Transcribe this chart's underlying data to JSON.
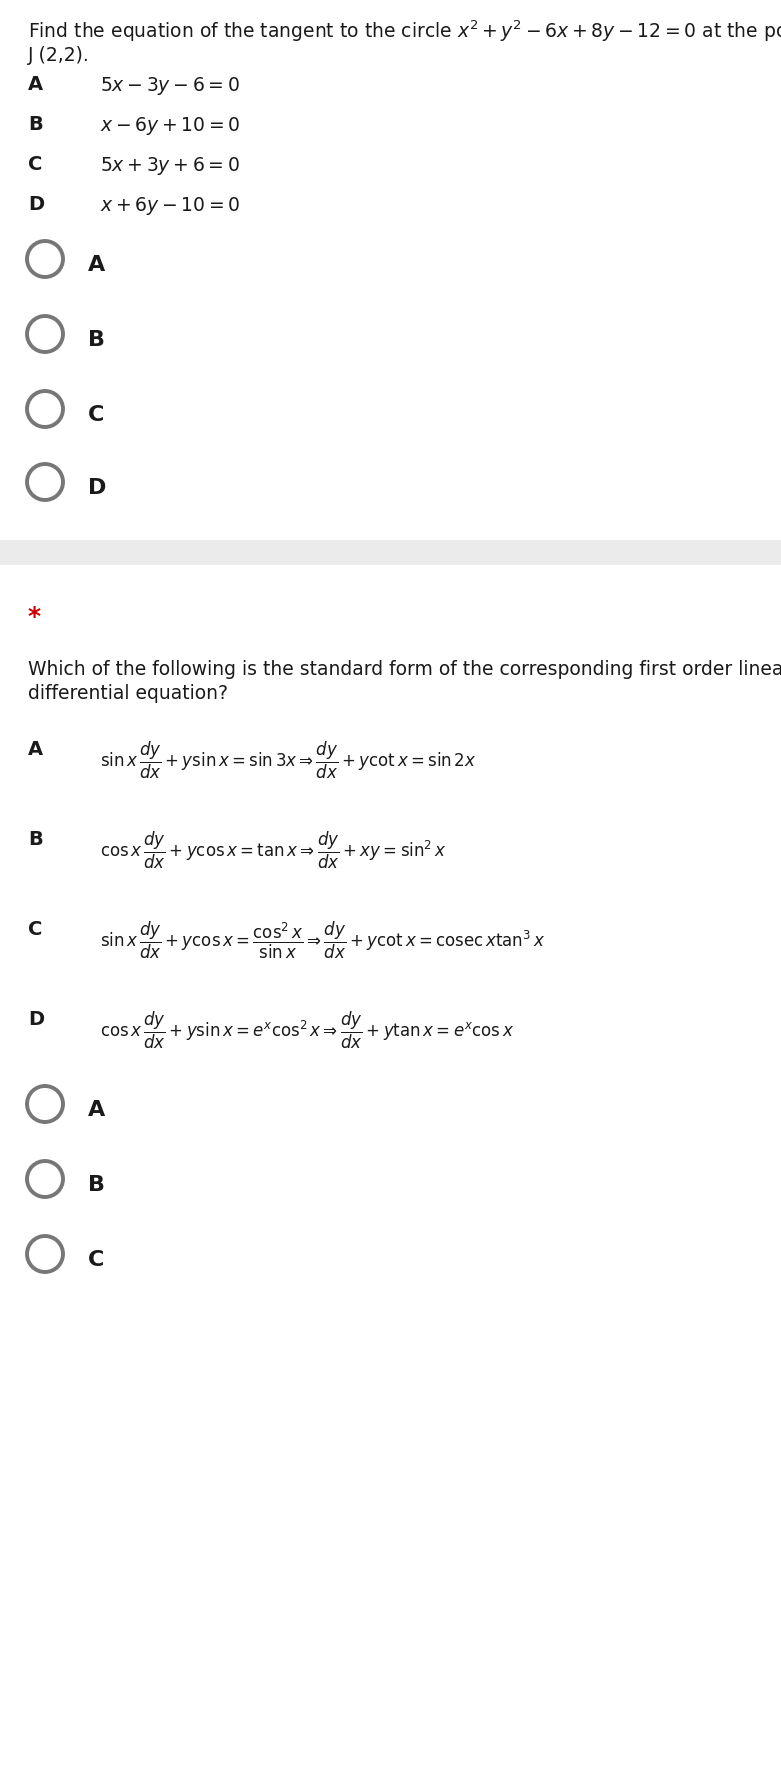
{
  "bg_color": "#ffffff",
  "separator_color": "#ebebeb",
  "text_color": "#1a1a1a",
  "circle_color": "#777777",
  "star_color": "#cc0000",
  "q1_title_plain": "Find the equation of the tangent to the circle ",
  "q1_title_math": "$x^2+y^2-6x+8y-12=0$",
  "q1_title_end": " at the point",
  "q1_point": "J (2,2).",
  "q1_options_labels": [
    "A",
    "B",
    "C",
    "D"
  ],
  "q1_options_math": [
    "$5x-3y-6=0$",
    "$x-6y+10=0$",
    "$5x+3y+6=0$",
    "$x+6y-10=0$"
  ],
  "q1_radio_labels": [
    "A",
    "B",
    "C",
    "D"
  ],
  "q2_title_line1": "Which of the following is the standard form of the corresponding first order linear",
  "q2_title_line2": "differential equation?",
  "q2_options_labels": [
    "A",
    "B",
    "C",
    "D"
  ],
  "q2_radio_labels": [
    "A",
    "B",
    "C"
  ],
  "figw": 7.81,
  "figh": 17.75,
  "dpi": 100
}
